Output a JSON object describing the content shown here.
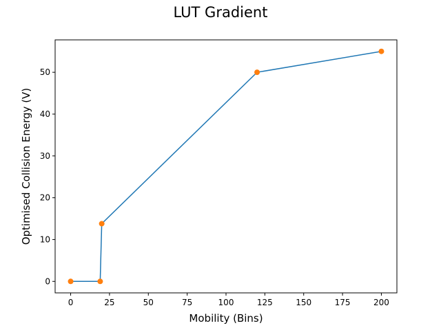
{
  "chart_data": {
    "type": "line",
    "title": "LUT Gradient",
    "xlabel": "Mobility (Bins)",
    "ylabel": "Optimised Collision Energy (V)",
    "xlim": [
      -10,
      210
    ],
    "ylim": [
      -2.75,
      57.75
    ],
    "xticks": [
      0,
      25,
      50,
      75,
      100,
      125,
      150,
      175,
      200
    ],
    "yticks": [
      0,
      10,
      20,
      30,
      40,
      50
    ],
    "grid": false,
    "series": [
      {
        "x": [
          0,
          19,
          20,
          120,
          200
        ],
        "y": [
          0,
          0,
          13.8,
          50,
          55
        ],
        "line_color": "#1f77b4",
        "marker_color": "#ff7f0e"
      }
    ]
  }
}
